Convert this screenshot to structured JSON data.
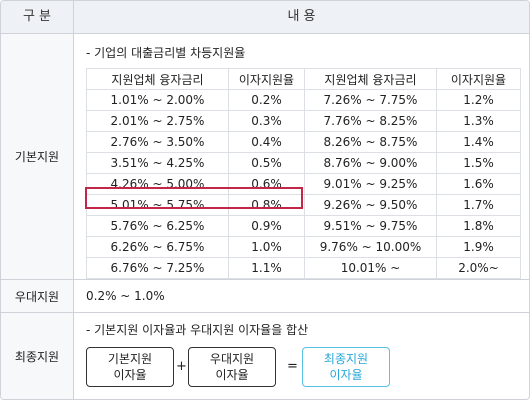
{
  "header": {
    "col1": "구 분",
    "col2": "내 용"
  },
  "basic": {
    "label": "기본지원",
    "note": "- 기업의 대출금리별 차등지원율",
    "columns": [
      "지원업체 융자금리",
      "이자지원율",
      "지원업체 융자금리",
      "이자지원율"
    ],
    "rows": [
      [
        "1.01% ~ 2.00%",
        "0.2%",
        "7.26% ~ 7.75%",
        "1.2%"
      ],
      [
        "2.01% ~ 2.75%",
        "0.3%",
        "7.76% ~ 8.25%",
        "1.3%"
      ],
      [
        "2.76% ~ 3.50%",
        "0.4%",
        "8.26% ~ 8.75%",
        "1.4%"
      ],
      [
        "3.51% ~ 4.25%",
        "0.5%",
        "8.76% ~ 9.00%",
        "1.5%"
      ],
      [
        "4.26% ~ 5.00%",
        "0.6%",
        "9.01% ~ 9.25%",
        "1.6%"
      ],
      [
        "5.01% ~ 5.75%",
        "0.8%",
        "9.26% ~ 9.50%",
        "1.7%"
      ],
      [
        "5.76% ~ 6.25%",
        "0.9%",
        "9.51% ~ 9.75%",
        "1.8%"
      ],
      [
        "6.26% ~ 6.75%",
        "1.0%",
        "9.76% ~ 10.00%",
        "1.9%"
      ],
      [
        "6.76% ~ 7.25%",
        "1.1%",
        "10.01% ~",
        "2.0%~"
      ]
    ],
    "highlighted_row": 5,
    "highlight_color": "#c2274a"
  },
  "preferential": {
    "label": "우대지원",
    "value": "0.2% ~ 1.0%"
  },
  "final": {
    "label": "최종지원",
    "note": "- 기본지원 이자율과 우대지원 이자율을 합산",
    "box1": {
      "line1": "기본지원",
      "line2": "이자율"
    },
    "plus": "+",
    "box2": {
      "line1": "우대지원",
      "line2": "이자율"
    },
    "equals": "=",
    "result": {
      "line1": "최종지원",
      "line2": "이자율"
    },
    "result_color": "#29a7d9"
  }
}
